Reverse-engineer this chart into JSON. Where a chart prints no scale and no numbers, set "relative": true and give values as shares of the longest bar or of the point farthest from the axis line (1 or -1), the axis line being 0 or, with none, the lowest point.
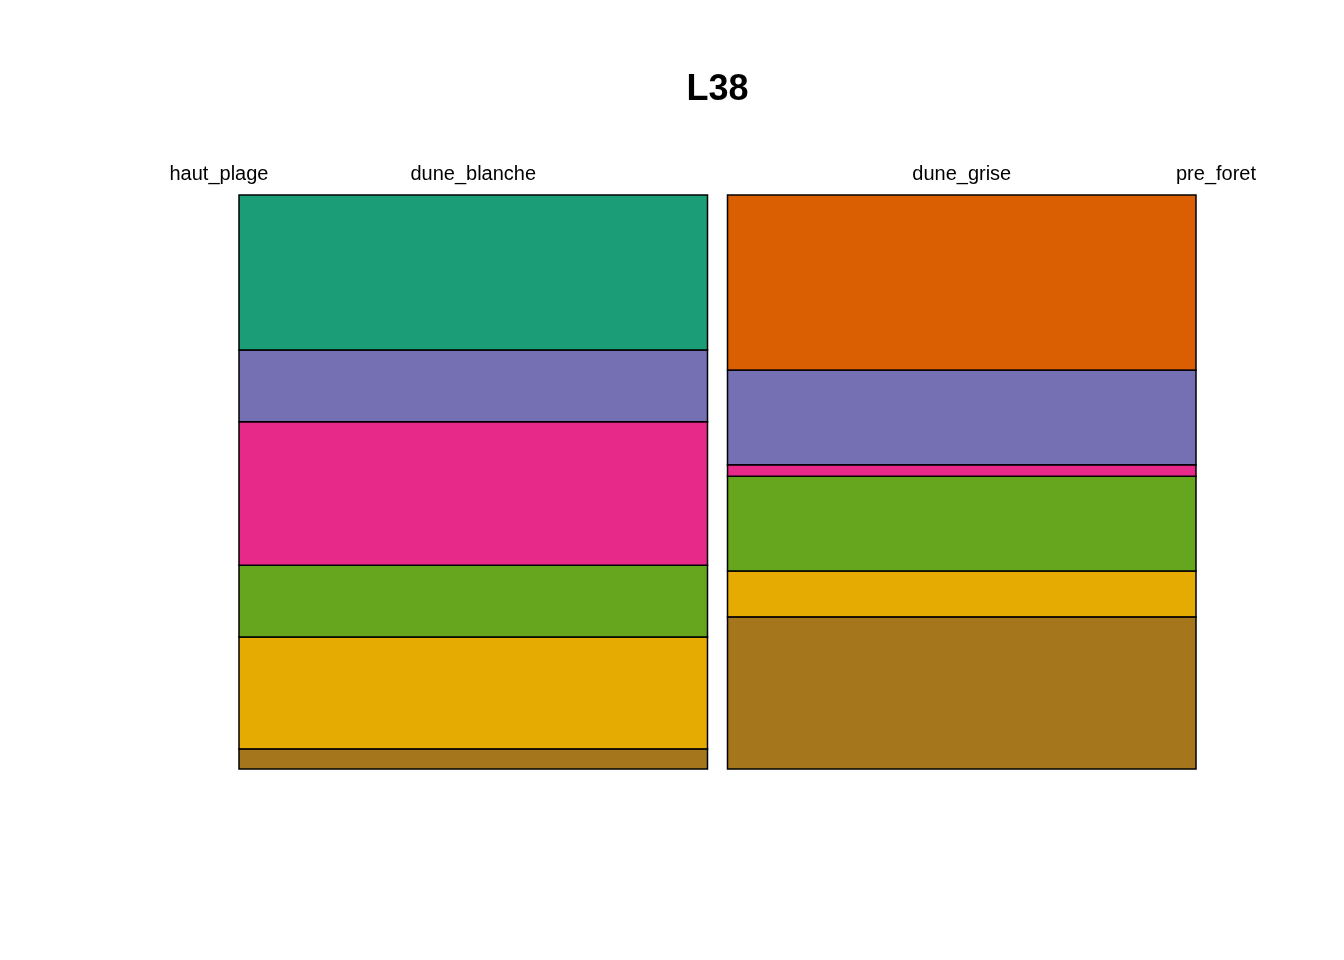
{
  "chart_data": {
    "type": "bar",
    "title": "L38",
    "stacked": true,
    "relative": true,
    "categories": [
      "haut_plage",
      "dune_blanche",
      "dune_grise",
      "pre_foret"
    ],
    "series": [
      {
        "color": "#a6761d",
        "values": [
          0,
          0.035,
          0.265,
          0
        ]
      },
      {
        "color": "#e6ab02",
        "values": [
          0,
          0.195,
          0.08,
          0
        ]
      },
      {
        "color": "#66a61e",
        "values": [
          0,
          0.125,
          0.165,
          0
        ]
      },
      {
        "color": "#e7298a",
        "values": [
          0,
          0.25,
          0.02,
          0
        ]
      },
      {
        "color": "#7570b3",
        "values": [
          0,
          0.125,
          0.165,
          0
        ]
      },
      {
        "color": "#d95f02",
        "values": [
          0,
          0,
          0.305,
          0
        ]
      },
      {
        "color": "#1b9e77",
        "values": [
          0,
          0.27,
          0,
          0
        ]
      }
    ]
  }
}
